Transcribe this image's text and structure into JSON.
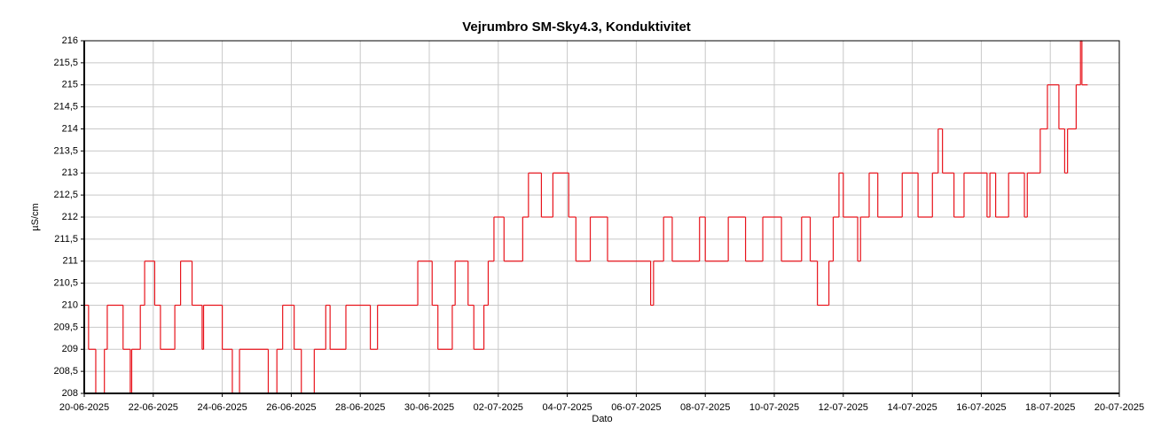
{
  "chart_data": {
    "type": "line",
    "title": "Vejrumbro SM-Sky4.3, Konduktivitet",
    "xlabel": "Dato",
    "ylabel": "µS/cm",
    "step": "post",
    "grid": true,
    "xlim": [
      "2025-06-20",
      "2025-07-20"
    ],
    "xticks": [
      {
        "value": "2025-06-20",
        "label": "20-06-2025"
      },
      {
        "value": "2025-06-22",
        "label": "22-06-2025"
      },
      {
        "value": "2025-06-24",
        "label": "24-06-2025"
      },
      {
        "value": "2025-06-26",
        "label": "26-06-2025"
      },
      {
        "value": "2025-06-28",
        "label": "28-06-2025"
      },
      {
        "value": "2025-06-30",
        "label": "30-06-2025"
      },
      {
        "value": "2025-07-02",
        "label": "02-07-2025"
      },
      {
        "value": "2025-07-04",
        "label": "04-07-2025"
      },
      {
        "value": "2025-07-06",
        "label": "06-07-2025"
      },
      {
        "value": "2025-07-08",
        "label": "08-07-2025"
      },
      {
        "value": "2025-07-10",
        "label": "10-07-2025"
      },
      {
        "value": "2025-07-12",
        "label": "12-07-2025"
      },
      {
        "value": "2025-07-14",
        "label": "14-07-2025"
      },
      {
        "value": "2025-07-16",
        "label": "16-07-2025"
      },
      {
        "value": "2025-07-18",
        "label": "18-07-2025"
      },
      {
        "value": "2025-07-20",
        "label": "20-07-2025"
      }
    ],
    "ylim": [
      208,
      216
    ],
    "yticks": [
      208,
      {
        "value": 208.5,
        "label": "208,5"
      },
      209,
      {
        "value": 209.5,
        "label": "209,5"
      },
      210,
      {
        "value": 210.5,
        "label": "210,5"
      },
      211,
      {
        "value": 211.5,
        "label": "211,5"
      },
      212,
      {
        "value": 212.5,
        "label": "212,5"
      },
      213,
      {
        "value": 213.5,
        "label": "213,5"
      },
      214,
      {
        "value": 214.5,
        "label": "214,5"
      },
      215,
      {
        "value": 215.5,
        "label": "215,5"
      },
      216
    ],
    "series": [
      {
        "name": "Konduktivitet",
        "color": "#e8141c",
        "x": [
          "2025-06-20T00:00",
          "2025-06-20T03:00",
          "2025-06-20T08:00",
          "2025-06-20T14:00",
          "2025-06-20T16:00",
          "2025-06-21T03:00",
          "2025-06-21T08:00",
          "2025-06-21T09:00",
          "2025-06-21T15:00",
          "2025-06-21T18:00",
          "2025-06-22T01:00",
          "2025-06-22T05:00",
          "2025-06-22T15:00",
          "2025-06-22T19:00",
          "2025-06-23T03:00",
          "2025-06-23T10:00",
          "2025-06-23T11:00",
          "2025-06-24T00:00",
          "2025-06-24T07:00",
          "2025-06-24T12:00",
          "2025-06-25T08:00",
          "2025-06-25T14:00",
          "2025-06-25T18:00",
          "2025-06-26T02:00",
          "2025-06-26T07:00",
          "2025-06-26T16:00",
          "2025-06-27T00:00",
          "2025-06-27T03:00",
          "2025-06-27T14:00",
          "2025-06-28T07:00",
          "2025-06-28T12:00",
          "2025-06-29T16:00",
          "2025-06-30T02:00",
          "2025-06-30T06:00",
          "2025-06-30T16:00",
          "2025-06-30T18:00",
          "2025-07-01T03:00",
          "2025-07-01T07:00",
          "2025-07-01T14:00",
          "2025-07-01T17:00",
          "2025-07-01T21:00",
          "2025-07-02T04:00",
          "2025-07-02T17:00",
          "2025-07-02T21:00",
          "2025-07-03T06:00",
          "2025-07-03T14:00",
          "2025-07-04T01:00",
          "2025-07-04T06:00",
          "2025-07-04T16:00",
          "2025-07-05T04:00",
          "2025-07-06T10:00",
          "2025-07-06T12:00",
          "2025-07-06T19:00",
          "2025-07-07T01:00",
          "2025-07-07T20:00",
          "2025-07-08T00:00",
          "2025-07-08T16:00",
          "2025-07-09T04:00",
          "2025-07-09T16:00",
          "2025-07-10T05:00",
          "2025-07-10T19:00",
          "2025-07-11T01:00",
          "2025-07-11T06:00",
          "2025-07-11T14:00",
          "2025-07-11T17:00",
          "2025-07-11T21:00",
          "2025-07-12T00:00",
          "2025-07-12T10:00",
          "2025-07-12T12:00",
          "2025-07-12T18:00",
          "2025-07-13T00:00",
          "2025-07-13T17:00",
          "2025-07-14T04:00",
          "2025-07-14T14:00",
          "2025-07-14T18:00",
          "2025-07-14T21:00",
          "2025-07-15T05:00",
          "2025-07-15T12:00",
          "2025-07-16T04:00",
          "2025-07-16T06:00",
          "2025-07-16T10:00",
          "2025-07-16T19:00",
          "2025-07-17T06:00",
          "2025-07-17T08:00",
          "2025-07-17T17:00",
          "2025-07-17T22:00",
          "2025-07-18T06:00",
          "2025-07-18T10:00",
          "2025-07-18T12:00",
          "2025-07-18T18:00",
          "2025-07-18T21:00",
          "2025-07-18T22:00",
          "2025-07-19T02:00"
        ],
        "values": [
          210,
          209,
          208,
          209,
          210,
          209,
          208,
          209,
          210,
          211,
          210,
          209,
          210,
          211,
          210,
          209,
          210,
          209,
          208,
          209,
          208,
          209,
          210,
          209,
          208,
          209,
          210,
          209,
          210,
          209,
          210,
          211,
          210,
          209,
          210,
          211,
          210,
          209,
          210,
          211,
          212,
          211,
          212,
          213,
          212,
          213,
          212,
          211,
          212,
          211,
          210,
          211,
          212,
          211,
          212,
          211,
          212,
          211,
          212,
          211,
          212,
          211,
          210,
          211,
          212,
          213,
          212,
          211,
          212,
          213,
          212,
          213,
          212,
          213,
          214,
          213,
          212,
          213,
          212,
          213,
          212,
          213,
          212,
          213,
          214,
          215,
          214,
          213,
          214,
          215,
          216,
          215,
          215
        ]
      }
    ]
  }
}
